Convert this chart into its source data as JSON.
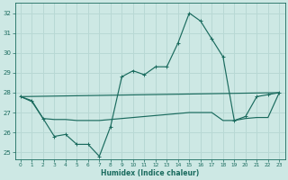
{
  "xlabel": "Humidex (Indice chaleur)",
  "background_color": "#cde8e4",
  "grid_color": "#b8d8d4",
  "line_color": "#1a6b5e",
  "xlim": [
    -0.5,
    23.5
  ],
  "ylim": [
    24.65,
    32.5
  ],
  "yticks": [
    25,
    26,
    27,
    28,
    29,
    30,
    31,
    32
  ],
  "xticks": [
    0,
    1,
    2,
    3,
    4,
    5,
    6,
    7,
    8,
    9,
    10,
    11,
    12,
    13,
    14,
    15,
    16,
    17,
    18,
    19,
    20,
    21,
    22,
    23
  ],
  "series1_x": [
    0,
    1,
    2,
    3,
    4,
    5,
    6,
    7,
    8,
    9,
    10,
    11,
    12,
    13,
    14,
    15,
    16,
    17,
    18,
    19,
    20,
    21,
    22,
    23
  ],
  "series1_y": [
    27.8,
    27.6,
    26.7,
    25.8,
    25.9,
    25.4,
    25.4,
    24.8,
    26.3,
    28.8,
    29.1,
    28.9,
    29.3,
    29.3,
    30.5,
    32.0,
    31.6,
    30.7,
    29.8,
    26.6,
    26.8,
    27.8,
    27.9,
    28.0
  ],
  "series2_x": [
    0,
    23
  ],
  "series2_y": [
    27.8,
    28.0
  ],
  "series3_x": [
    0,
    1,
    2,
    3,
    4,
    5,
    6,
    7,
    8,
    9,
    10,
    11,
    12,
    13,
    14,
    15,
    16,
    17,
    18,
    19,
    20,
    21,
    22,
    23
  ],
  "series3_y": [
    27.8,
    27.55,
    26.7,
    26.65,
    26.65,
    26.6,
    26.6,
    26.6,
    26.65,
    26.7,
    26.75,
    26.8,
    26.85,
    26.9,
    26.95,
    27.0,
    27.0,
    27.0,
    26.6,
    26.6,
    26.7,
    26.75,
    26.75,
    28.0
  ]
}
